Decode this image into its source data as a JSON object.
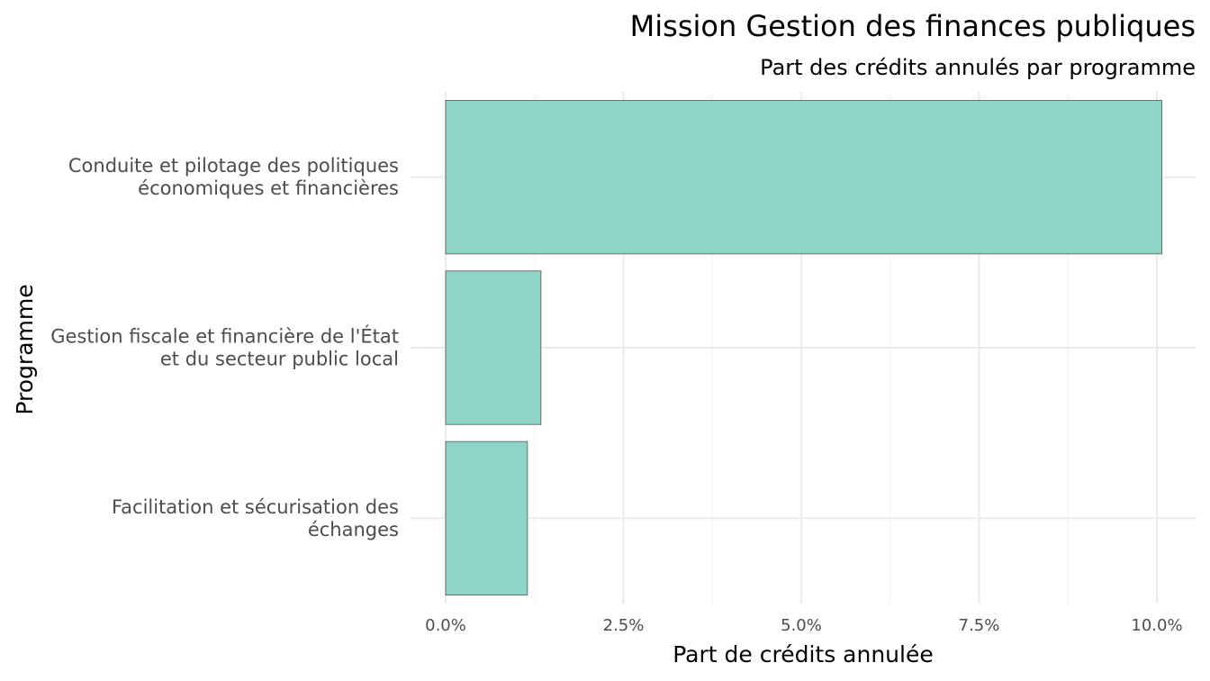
{
  "chart_data": {
    "type": "bar",
    "orientation": "horizontal",
    "title": "Mission Gestion des finances publiques",
    "subtitle": "Part des crédits annulés par programme",
    "xlabel": "Part de crédits annulée",
    "ylabel": "Programme",
    "categories": [
      [
        "Conduite et pilotage des politiques",
        "économiques et financières"
      ],
      [
        "Gestion fiscale et financière de l'État",
        "et du secteur public local"
      ],
      [
        "Facilitation et sécurisation des",
        "échanges"
      ]
    ],
    "values": [
      0.1007,
      0.0134,
      0.0115
    ],
    "xlim": [
      0,
      0.104
    ],
    "xticks": [
      0,
      0.025,
      0.05,
      0.075,
      0.1
    ],
    "xtick_labels": [
      "0.0%",
      "2.5%",
      "5.0%",
      "7.5%",
      "10.0%"
    ],
    "grid": true,
    "legend": "none",
    "colors": {
      "bar_fill": "#8fd4c8",
      "bar_stroke": "#555555",
      "grid_major": "#ebebeb",
      "grid_minor": "#f4f4f4"
    }
  }
}
